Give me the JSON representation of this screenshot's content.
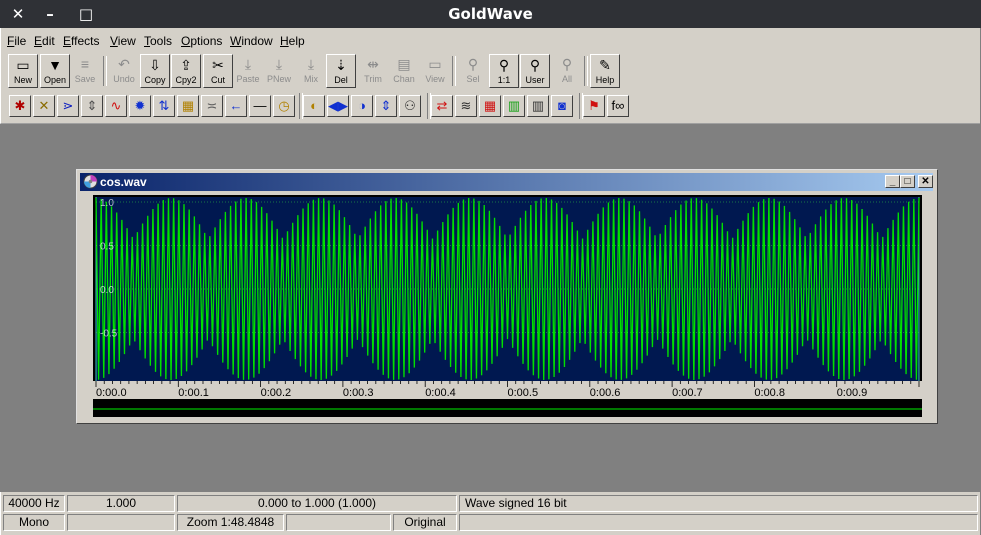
{
  "window": {
    "title": "GoldWave",
    "close_glyph": "✕",
    "minimize_glyph": "–",
    "maximize_glyph": "□"
  },
  "menu": [
    "File",
    "Edit",
    "Effects",
    "View",
    "Tools",
    "Options",
    "Window",
    "Help"
  ],
  "toolbar": [
    {
      "label": "New",
      "icon": "new-icon",
      "glyph": "▭",
      "enabled": true,
      "raised": true
    },
    {
      "label": "Open",
      "icon": "open-icon",
      "glyph": "▼",
      "enabled": true,
      "raised": true
    },
    {
      "label": "Save",
      "icon": "save-icon",
      "glyph": "≡",
      "enabled": false,
      "raised": false
    },
    {
      "label": "Undo",
      "icon": "undo-icon",
      "glyph": "↶",
      "enabled": false,
      "raised": false
    },
    {
      "label": "Copy",
      "icon": "copy-icon",
      "glyph": "⇩",
      "enabled": true,
      "raised": true
    },
    {
      "label": "Cpy2",
      "icon": "copy2-icon",
      "glyph": "⇪",
      "enabled": true,
      "raised": true
    },
    {
      "label": "Cut",
      "icon": "cut-icon",
      "glyph": "✂",
      "enabled": true,
      "raised": true
    },
    {
      "label": "Paste",
      "icon": "paste-icon",
      "glyph": "⤓",
      "enabled": false,
      "raised": false
    },
    {
      "label": "PNew",
      "icon": "paste-new-icon",
      "glyph": "⤓",
      "enabled": false,
      "raised": false
    },
    {
      "label": "Mix",
      "icon": "mix-icon",
      "glyph": "⤓",
      "enabled": false,
      "raised": false
    },
    {
      "label": "Del",
      "icon": "delete-icon",
      "glyph": "⇣",
      "enabled": true,
      "raised": true
    },
    {
      "label": "Trim",
      "icon": "trim-icon",
      "glyph": "⇹",
      "enabled": false,
      "raised": false
    },
    {
      "label": "Chan",
      "icon": "channel-icon",
      "glyph": "▤",
      "enabled": false,
      "raised": false
    },
    {
      "label": "View",
      "icon": "view-icon",
      "glyph": "▭",
      "enabled": false,
      "raised": false
    },
    {
      "label": "Sel",
      "icon": "zoom-selection-icon",
      "glyph": "⚲",
      "enabled": false,
      "raised": false
    },
    {
      "label": "1:1",
      "icon": "zoom-1-1-icon",
      "glyph": "⚲",
      "enabled": true,
      "raised": true
    },
    {
      "label": "User",
      "icon": "zoom-user-icon",
      "glyph": "⚲",
      "enabled": true,
      "raised": true
    },
    {
      "label": "All",
      "icon": "zoom-all-icon",
      "glyph": "⚲",
      "enabled": false,
      "raised": false
    },
    {
      "label": "Help",
      "icon": "help-book-icon",
      "glyph": "✎",
      "enabled": true,
      "raised": true
    }
  ],
  "effects_toolbar": [
    {
      "icon": "doppler-icon",
      "glyph": "✱",
      "color": "#b00000"
    },
    {
      "icon": "dynamics-icon",
      "glyph": "✕",
      "color": "#8a6b00"
    },
    {
      "icon": "echo-icon",
      "glyph": "⋗",
      "color": "#1020c0"
    },
    {
      "icon": "equalizer-icon",
      "glyph": "⇕",
      "color": "#505050"
    },
    {
      "icon": "flange-icon",
      "glyph": "∿",
      "color": "#d01010"
    },
    {
      "icon": "mechanize-icon",
      "glyph": "✹",
      "color": "#1030d0"
    },
    {
      "icon": "offset-icon",
      "glyph": "⇅",
      "color": "#1030d0"
    },
    {
      "icon": "pitch-icon",
      "glyph": "▦",
      "color": "#b08000"
    },
    {
      "icon": "noise-reduction-icon",
      "glyph": "≍",
      "color": "#606060"
    },
    {
      "icon": "reverse-icon",
      "glyph": "←",
      "color": "#1030d0"
    },
    {
      "icon": "silence-icon",
      "glyph": "—",
      "color": "#000000"
    },
    {
      "icon": "time-warp-icon",
      "glyph": "◷",
      "color": "#b08000"
    },
    {
      "icon": "fade-in-icon",
      "glyph": "◐",
      "color": "#b08000"
    },
    {
      "icon": "fade-out-icon",
      "glyph": "◀▶",
      "color": "#1030d0"
    },
    {
      "icon": "pan-icon",
      "glyph": "◑",
      "color": "#1030d0"
    },
    {
      "icon": "volume-icon",
      "glyph": "⇕",
      "color": "#1030d0"
    },
    {
      "icon": "matcher-icon",
      "glyph": "⚇",
      "color": "#303030"
    },
    {
      "icon": "mix-channels-icon",
      "glyph": "⇄",
      "color": "#d01010"
    },
    {
      "icon": "filter-icon",
      "glyph": "≋",
      "color": "#303030"
    },
    {
      "icon": "bandpass-icon",
      "glyph": "▦",
      "color": "#d01010"
    },
    {
      "icon": "parametric-eq-icon",
      "glyph": "▥",
      "color": "#10a010"
    },
    {
      "icon": "spectrum-filter-icon",
      "glyph": "▥",
      "color": "#303030"
    },
    {
      "icon": "noise-icon",
      "glyph": "◙",
      "color": "#1030d0"
    },
    {
      "icon": "marker-icon",
      "glyph": "⚑",
      "color": "#d01010"
    },
    {
      "icon": "expression-icon",
      "glyph": "f∞",
      "color": "#000000"
    }
  ],
  "document": {
    "title": "cos.wav",
    "amplitude_labels": [
      "1.0",
      "0.5",
      "0.0",
      "-0.5"
    ],
    "time_labels": [
      "0:00.0",
      "0:00.1",
      "0:00.2",
      "0:00.3",
      "0:00.4",
      "0:00.5",
      "0:00.6",
      "0:00.7",
      "0:00.8",
      "0:00.9"
    ],
    "wave_color": "#00e000",
    "background_color": "#001850",
    "grid_color": "#40ff40",
    "cycles_visible": 159,
    "envelope_peaks": 11
  },
  "status": {
    "row1": {
      "rate": "40000 Hz",
      "length": "1.000",
      "selection": "0.000 to 1.000  (1.000)",
      "format": "Wave signed 16 bit"
    },
    "row2": {
      "channels": "Mono",
      "blank1": "",
      "zoom": "Zoom 1:48.4848",
      "blank2": "",
      "state": "Original",
      "blank3": ""
    }
  }
}
